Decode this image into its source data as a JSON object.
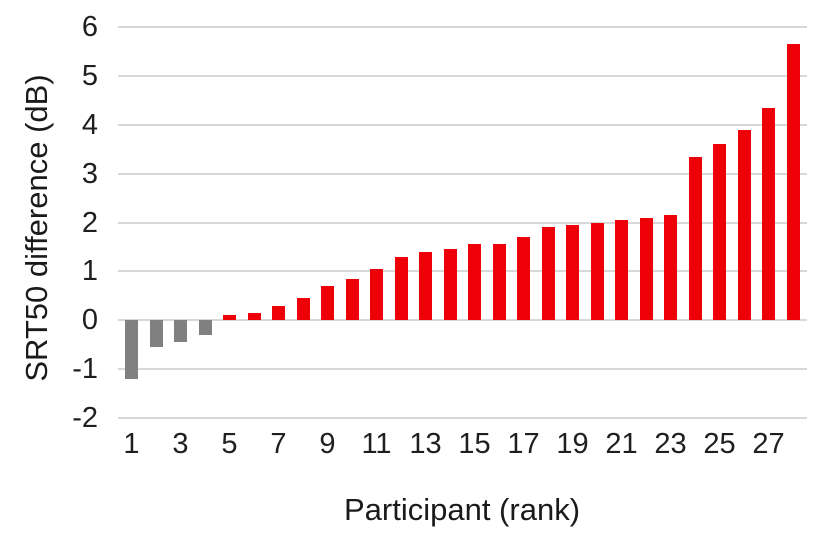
{
  "chart_data": {
    "type": "bar",
    "title": "",
    "xlabel": "Participant (rank)",
    "ylabel": "SRT50 difference (dB)",
    "categories": [
      1,
      2,
      3,
      4,
      5,
      6,
      7,
      8,
      9,
      10,
      11,
      12,
      13,
      14,
      15,
      16,
      17,
      18,
      19,
      20,
      21,
      22,
      23,
      24,
      25,
      26,
      27,
      28
    ],
    "values": [
      -1.2,
      -0.55,
      -0.45,
      -0.3,
      0.1,
      0.15,
      0.3,
      0.45,
      0.7,
      0.85,
      1.05,
      1.3,
      1.4,
      1.45,
      1.55,
      1.55,
      1.7,
      1.9,
      1.95,
      2.0,
      2.05,
      2.1,
      2.15,
      3.35,
      3.6,
      3.9,
      4.35,
      5.65
    ],
    "ylim": [
      -2,
      6
    ],
    "yticks": [
      6,
      5,
      4,
      3,
      2,
      1,
      0,
      -1,
      -2
    ],
    "xticks_shown": [
      1,
      3,
      5,
      7,
      9,
      11,
      13,
      15,
      17,
      19,
      21,
      23,
      25,
      27
    ],
    "grid": "horizontal",
    "legend": "none",
    "color_rule": "bars with negative values are gray, bars with positive values are red",
    "colors": {
      "positive_bar": "#ee0008",
      "negative_bar": "#808080",
      "gridline": "#d8d8d8",
      "text": "#1f1f1f"
    }
  }
}
